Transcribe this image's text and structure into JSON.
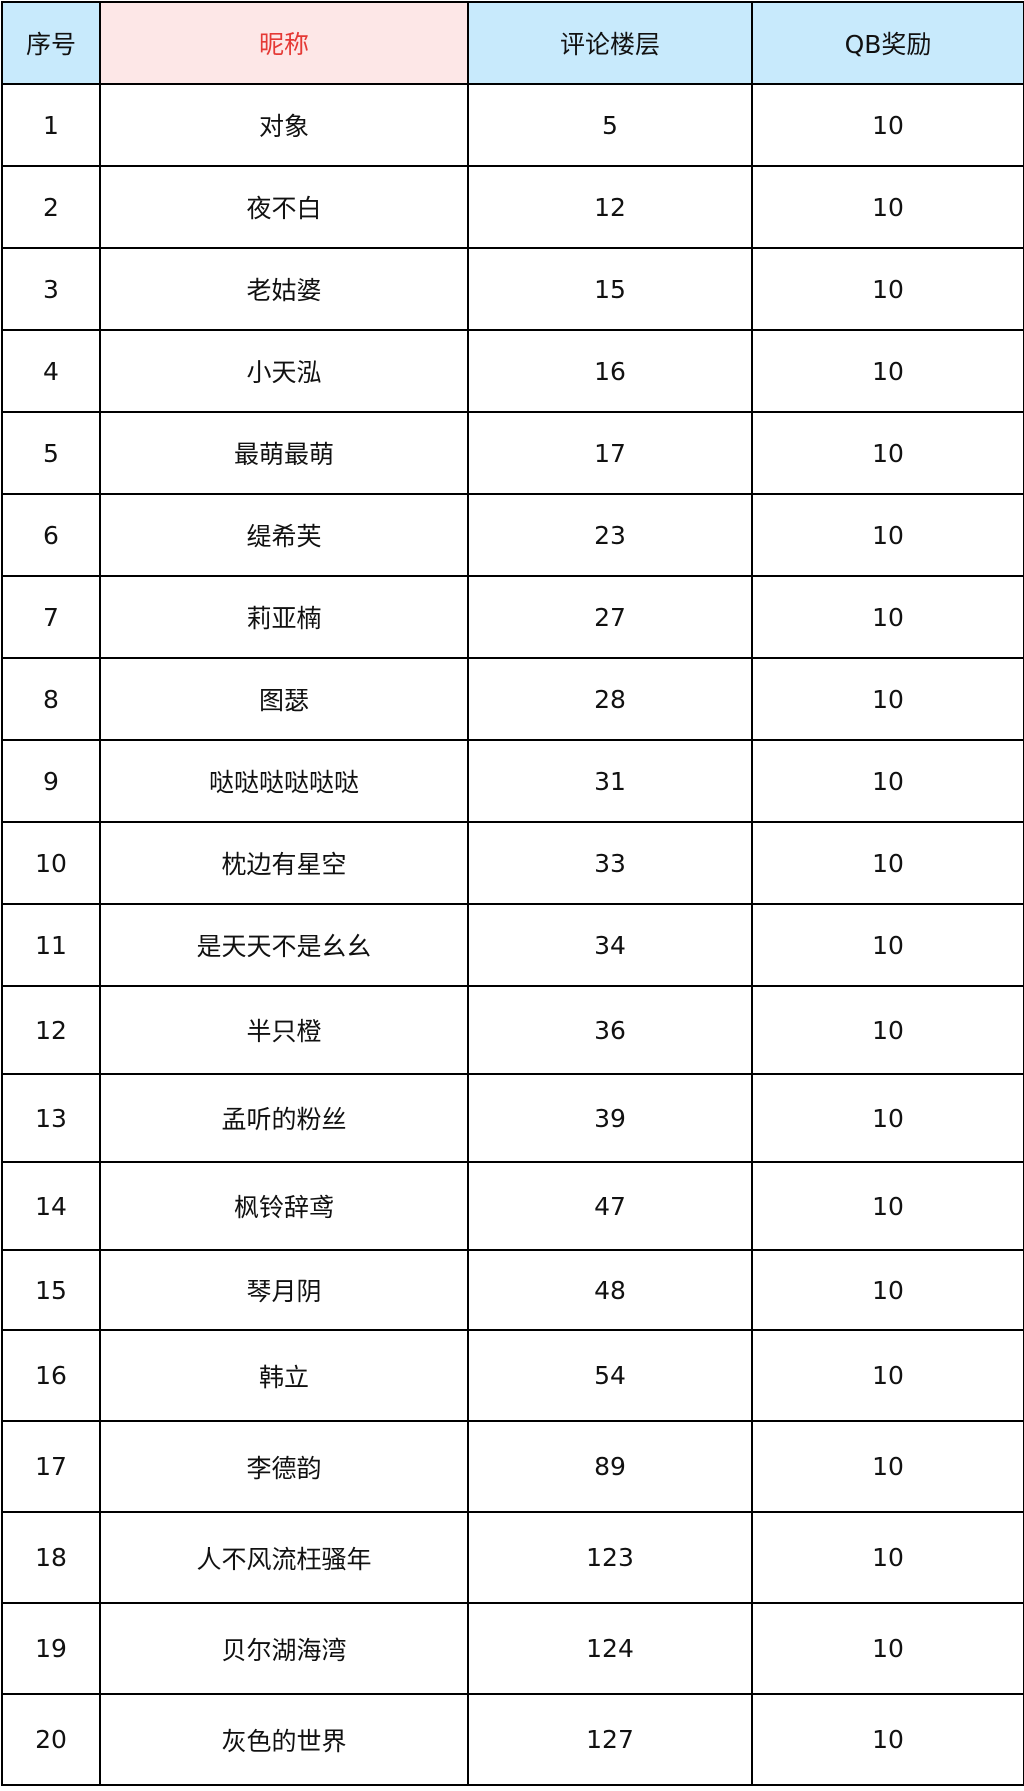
{
  "table": {
    "headers": [
      "序号",
      "昵称",
      "评论楼层",
      "QB奖励"
    ],
    "highlight_header_color": "#fde7e7",
    "highlight_text_color": "#e53935",
    "header_color": "#c8eafc",
    "rows": [
      [
        "1",
        "对象",
        "5",
        "10"
      ],
      [
        "2",
        "夜不白",
        "12",
        "10"
      ],
      [
        "3",
        "老姑婆",
        "15",
        "10"
      ],
      [
        "4",
        "小天泓",
        "16",
        "10"
      ],
      [
        "5",
        "最萌最萌",
        "17",
        "10"
      ],
      [
        "6",
        "缇希芙",
        "23",
        "10"
      ],
      [
        "7",
        "莉亚楠",
        "27",
        "10"
      ],
      [
        "8",
        "图瑟",
        "28",
        "10"
      ],
      [
        "9",
        "哒哒哒哒哒哒",
        "31",
        "10"
      ],
      [
        "10",
        "枕边有星空",
        "33",
        "10"
      ],
      [
        "11",
        "是天天不是幺幺",
        "34",
        "10"
      ],
      [
        "12",
        "半只橙",
        "36",
        "10"
      ],
      [
        "13",
        "孟听的粉丝",
        "39",
        "10"
      ],
      [
        "14",
        "枫铃辞鸢",
        "47",
        "10"
      ],
      [
        "15",
        "琴月阴",
        "48",
        "10"
      ],
      [
        "16",
        "韩立",
        "54",
        "10"
      ],
      [
        "17",
        "李德韵",
        "89",
        "10"
      ],
      [
        "18",
        "人不风流枉骚年",
        "123",
        "10"
      ],
      [
        "19",
        "贝尔湖海湾",
        "124",
        "10"
      ],
      [
        "20",
        "灰色的世界",
        "127",
        "10"
      ]
    ]
  }
}
